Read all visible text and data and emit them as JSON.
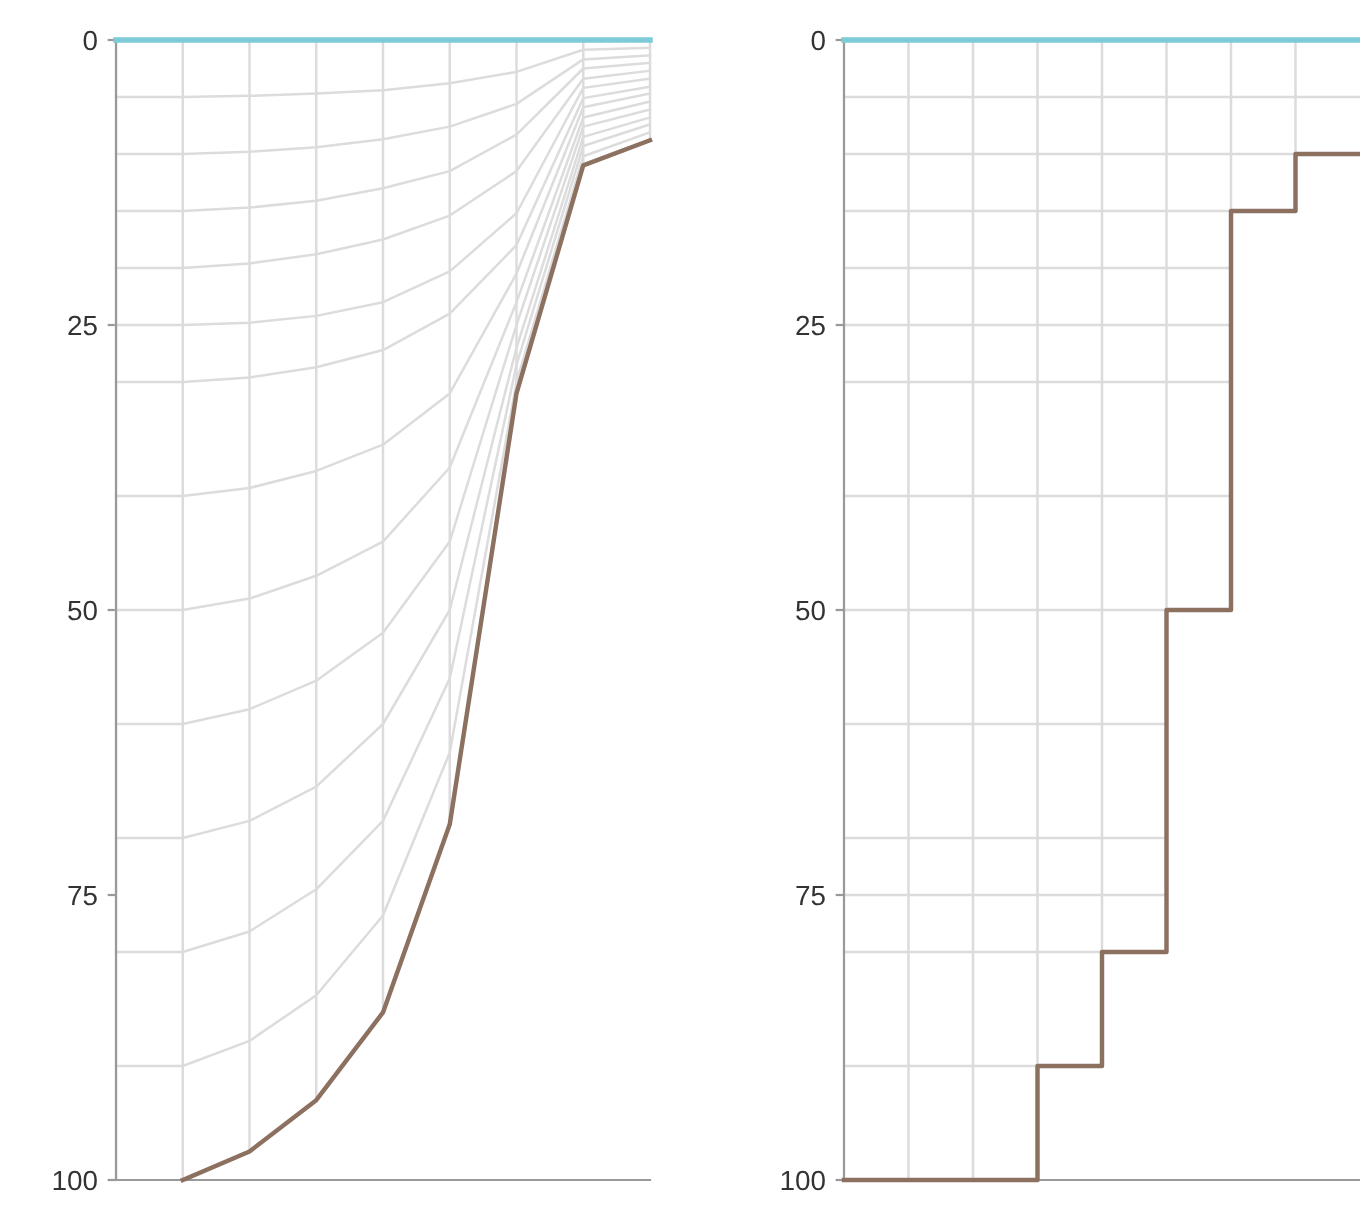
{
  "chart_data": [
    {
      "type": "line",
      "ylim": [
        100,
        0
      ],
      "yticks": [
        0,
        25,
        50,
        75,
        100
      ],
      "grid": "x",
      "tick_labels": "y",
      "line_style": "solid",
      "marker": "none",
      "ref_lines": [
        {
          "axis": "y",
          "value": 0,
          "label": null,
          "color": "#7ccbd6"
        }
      ],
      "categories": [
        null,
        null,
        null,
        null,
        null,
        null,
        null,
        null,
        null
      ],
      "series": [
        {
          "color": "#8c7060",
          "values": [
            null,
            100,
            97.5,
            93,
            85.3,
            68.8,
            31,
            11,
            8.8
          ]
        },
        {
          "color": "#dcdcdc",
          "values": [
            5,
            5,
            4.9,
            4.7,
            4.4,
            3.8,
            2.8,
            0.85,
            0.68
          ]
        },
        {
          "color": "#dcdcdc",
          "values": [
            10,
            10,
            9.8,
            9.4,
            8.7,
            7.6,
            5.6,
            1.7,
            1.35
          ]
        },
        {
          "color": "#dcdcdc",
          "values": [
            15,
            15,
            14.7,
            14.1,
            13,
            11.5,
            8.3,
            2.5,
            2
          ]
        },
        {
          "color": "#dcdcdc",
          "values": [
            20,
            20,
            19.6,
            18.8,
            17.5,
            15.4,
            11.5,
            3.4,
            2.7
          ]
        },
        {
          "color": "#dcdcdc",
          "values": [
            25,
            25,
            24.8,
            24.2,
            23,
            20.3,
            15.2,
            4.2,
            3.4
          ]
        },
        {
          "color": "#dcdcdc",
          "values": [
            30,
            30,
            29.6,
            28.7,
            27.2,
            24,
            18,
            5.1,
            4.1
          ]
        },
        {
          "color": "#dcdcdc",
          "values": [
            40,
            40,
            39.3,
            37.8,
            35.5,
            31,
            20.5,
            5.9,
            4.7
          ]
        },
        {
          "color": "#dcdcdc",
          "values": [
            50,
            50,
            49,
            47,
            44,
            37.5,
            23,
            6.8,
            5.4
          ]
        },
        {
          "color": "#dcdcdc",
          "values": [
            60,
            60,
            58.7,
            56.2,
            52,
            44,
            25,
            7.6,
            6.1
          ]
        },
        {
          "color": "#dcdcdc",
          "values": [
            70,
            70,
            68.5,
            65.5,
            60,
            50,
            27,
            8.5,
            6.8
          ]
        },
        {
          "color": "#dcdcdc",
          "values": [
            80,
            80,
            78.2,
            74.5,
            68.5,
            56,
            28.5,
            9.3,
            7.4
          ]
        },
        {
          "color": "#dcdcdc",
          "values": [
            90,
            90,
            87.8,
            83.8,
            76.8,
            62.5,
            30,
            10.2,
            8.1
          ]
        }
      ]
    },
    {
      "type": "step",
      "ylim": [
        100,
        0
      ],
      "yticks": [
        0,
        {
          "value": 5,
          "label": null
        },
        {
          "value": 10,
          "label": null
        },
        {
          "value": 15,
          "label": null
        },
        {
          "value": 20,
          "label": null
        },
        25,
        {
          "value": 30,
          "label": null
        },
        {
          "value": 40,
          "label": null
        },
        50,
        {
          "value": 60,
          "label": null
        },
        {
          "value": 70,
          "label": null
        },
        75,
        {
          "value": 80,
          "label": null
        },
        {
          "value": 90,
          "label": null
        },
        100
      ],
      "grid": true,
      "tick_labels": "y",
      "line_style": "solid",
      "marker": "none",
      "ref_lines": [
        {
          "axis": "y",
          "value": 0,
          "label": null,
          "color": "#7ccbd6"
        }
      ],
      "categories": [
        null,
        null,
        null,
        null,
        null,
        null,
        null,
        null,
        null
      ],
      "series": [
        {
          "color": "#8c7060",
          "values": [
            100,
            100,
            100,
            90,
            80,
            50,
            15,
            10,
            10
          ]
        }
      ]
    }
  ]
}
